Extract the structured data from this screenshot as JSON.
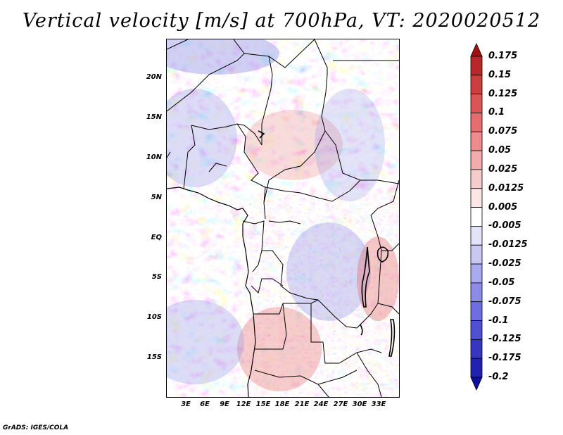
{
  "title": "Vertical velocity [m/s] at 700hPa, VT: 2020020512",
  "footer": "GrADS: IGES/COLA",
  "map": {
    "lon_range": [
      -1.5,
      35
    ],
    "lat_range": [
      -20,
      24.5
    ],
    "lat_ticks": [
      {
        "value": 20,
        "label": "20N"
      },
      {
        "value": 15,
        "label": "15N"
      },
      {
        "value": 10,
        "label": "10N"
      },
      {
        "value": 5,
        "label": "5N"
      },
      {
        "value": 0,
        "label": "EQ"
      },
      {
        "value": -5,
        "label": "5S"
      },
      {
        "value": -10,
        "label": "10S"
      },
      {
        "value": -15,
        "label": "15S"
      }
    ],
    "lon_ticks": [
      {
        "value": 3,
        "label": "3E"
      },
      {
        "value": 6,
        "label": "6E"
      },
      {
        "value": 9,
        "label": "9E"
      },
      {
        "value": 12,
        "label": "12E"
      },
      {
        "value": 15,
        "label": "15E"
      },
      {
        "value": 18,
        "label": "18E"
      },
      {
        "value": 21,
        "label": "21E"
      },
      {
        "value": 24,
        "label": "24E"
      },
      {
        "value": 27,
        "label": "27E"
      },
      {
        "value": 30,
        "label": "30E"
      },
      {
        "value": 33,
        "label": "33E"
      }
    ]
  },
  "colorbar": {
    "levels": [
      "0.175",
      "0.15",
      "0.125",
      "0.1",
      "0.075",
      "0.05",
      "0.025",
      "0.0125",
      "0.005",
      "-0.005",
      "-0.0125",
      "-0.025",
      "-0.05",
      "-0.075",
      "-0.1",
      "-0.125",
      "-0.175",
      "-0.2"
    ],
    "colors": [
      "#a01010",
      "#b82828",
      "#cc3f3f",
      "#dc5555",
      "#e46e6e",
      "#ec8c8c",
      "#f2acac",
      "#f7cccc",
      "#fce6e6",
      "#ffffff",
      "#e3e3f9",
      "#c8c8f2",
      "#aaaaee",
      "#8c8ce6",
      "#6e6ee0",
      "#5050d2",
      "#3636c0",
      "#2222b0",
      "#1010a0"
    ]
  }
}
